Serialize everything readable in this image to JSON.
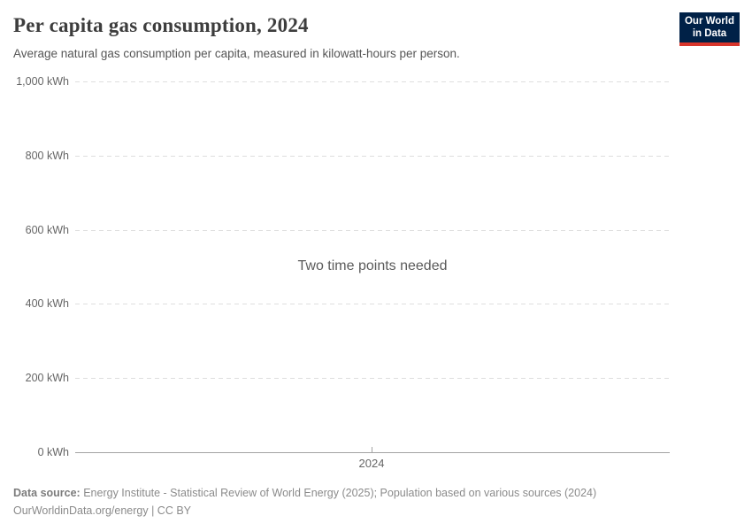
{
  "header": {
    "title": "Per capita gas consumption, 2024",
    "subtitle": "Average natural gas consumption per capita, measured in kilowatt-hours per person.",
    "logo": {
      "line1": "Our World",
      "line2": "in Data"
    }
  },
  "chart_data": {
    "type": "line",
    "title": "Per capita gas consumption, 2024",
    "subtitle": "Average natural gas consumption per capita, measured in kilowatt-hours per person.",
    "unit": "kWh",
    "empty_message": "Two time points needed",
    "series": [],
    "y_axis": {
      "min": 0,
      "max": 1000,
      "grid": true,
      "grid_style": "dashed",
      "ticks": [
        {
          "value": 0,
          "label": "0 kWh"
        },
        {
          "value": 200,
          "label": "200 kWh"
        },
        {
          "value": 400,
          "label": "400 kWh"
        },
        {
          "value": 600,
          "label": "600 kWh"
        },
        {
          "value": 800,
          "label": "800 kWh"
        },
        {
          "value": 1000,
          "label": "1,000 kWh"
        }
      ]
    },
    "x_axis": {
      "ticks": [
        {
          "label": "2024"
        }
      ]
    }
  },
  "footer": {
    "datasource_label": "Data source:",
    "datasource_text": "Energy Institute - Statistical Review of World Energy (2025); Population based on various sources (2024)",
    "url_line": "OurWorldinData.org/energy | CC BY"
  },
  "colors": {
    "logo_navy": "#002147",
    "logo_red": "#d8352b",
    "gridline": "#dedede",
    "axis_line": "#a3a3a3",
    "text_primary": "#3d3d3d",
    "text_secondary": "#565656",
    "text_muted": "#8b8b8b"
  }
}
